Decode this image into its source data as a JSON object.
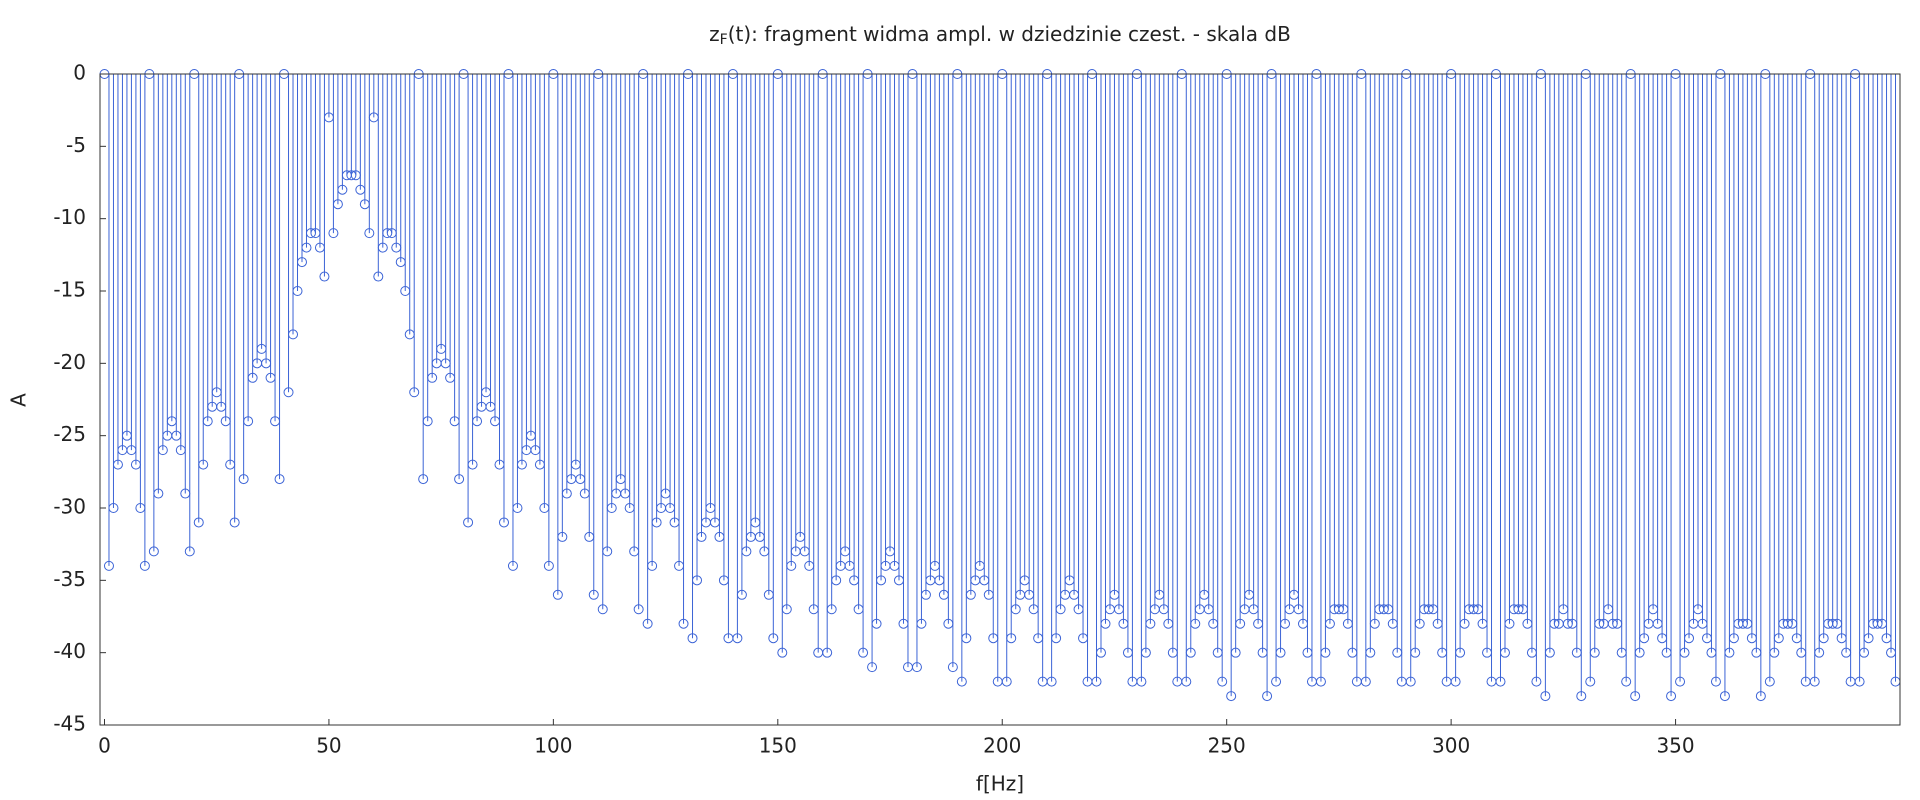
{
  "chart_data": {
    "type": "stem",
    "title_base": "z",
    "title_subscript": "F",
    "title_rest": "(t): fragment widma ampl. w dziedzinie czest. - skala dB",
    "xlabel": "f[Hz]",
    "ylabel": "A",
    "color": "#3b63d6",
    "xlim": [
      -1,
      400
    ],
    "xticks": [
      0,
      50,
      100,
      150,
      200,
      250,
      300,
      350
    ],
    "ylim": [
      -45,
      0
    ],
    "yticks": [
      0,
      -5,
      -10,
      -15,
      -20,
      -25,
      -30,
      -35,
      -40,
      -45
    ],
    "x": [
      0,
      1,
      2,
      3,
      4,
      5,
      6,
      7,
      8,
      9,
      10,
      11,
      12,
      13,
      14,
      15,
      16,
      17,
      18,
      19,
      20,
      21,
      22,
      23,
      24,
      25,
      26,
      27,
      28,
      29,
      30,
      31,
      32,
      33,
      34,
      35,
      36,
      37,
      38,
      39,
      40,
      41,
      42,
      43,
      44,
      45,
      46,
      47,
      48,
      49,
      50,
      51,
      52,
      53,
      54,
      55,
      56,
      57,
      58,
      59,
      60,
      61,
      62,
      63,
      64,
      65,
      66,
      67,
      68,
      69,
      70,
      71,
      72,
      73,
      74,
      75,
      76,
      77,
      78,
      79,
      80,
      81,
      82,
      83,
      84,
      85,
      86,
      87,
      88,
      89,
      90,
      91,
      92,
      93,
      94,
      95,
      96,
      97,
      98,
      99,
      100,
      101,
      102,
      103,
      104,
      105,
      106,
      107,
      108,
      109,
      110,
      111,
      112,
      113,
      114,
      115,
      116,
      117,
      118,
      119,
      120,
      121,
      122,
      123,
      124,
      125,
      126,
      127,
      128,
      129,
      130,
      131,
      132,
      133,
      134,
      135,
      136,
      137,
      138,
      139,
      140,
      141,
      142,
      143,
      144,
      145,
      146,
      147,
      148,
      149,
      150,
      151,
      152,
      153,
      154,
      155,
      156,
      157,
      158,
      159,
      160,
      161,
      162,
      163,
      164,
      165,
      166,
      167,
      168,
      169,
      170,
      171,
      172,
      173,
      174,
      175,
      176,
      177,
      178,
      179,
      180,
      181,
      182,
      183,
      184,
      185,
      186,
      187,
      188,
      189,
      190,
      191,
      192,
      193,
      194,
      195,
      196,
      197,
      198,
      199,
      200,
      201,
      202,
      203,
      204,
      205,
      206,
      207,
      208,
      209,
      210,
      211,
      212,
      213,
      214,
      215,
      216,
      217,
      218,
      219,
      220,
      221,
      222,
      223,
      224,
      225,
      226,
      227,
      228,
      229,
      230,
      231,
      232,
      233,
      234,
      235,
      236,
      237,
      238,
      239,
      240,
      241,
      242,
      243,
      244,
      245,
      246,
      247,
      248,
      249,
      250,
      251,
      252,
      253,
      254,
      255,
      256,
      257,
      258,
      259,
      260,
      261,
      262,
      263,
      264,
      265,
      266,
      267,
      268,
      269,
      270,
      271,
      272,
      273,
      274,
      275,
      276,
      277,
      278,
      279,
      280,
      281,
      282,
      283,
      284,
      285,
      286,
      287,
      288,
      289,
      290,
      291,
      292,
      293,
      294,
      295,
      296,
      297,
      298,
      299,
      300,
      301,
      302,
      303,
      304,
      305,
      306,
      307,
      308,
      309,
      310,
      311,
      312,
      313,
      314,
      315,
      316,
      317,
      318,
      319,
      320,
      321,
      322,
      323,
      324,
      325,
      326,
      327,
      328,
      329,
      330,
      331,
      332,
      333,
      334,
      335,
      336,
      337,
      338,
      339,
      340,
      341,
      342,
      343,
      344,
      345,
      346,
      347,
      348,
      349,
      350,
      351,
      352,
      353,
      354,
      355,
      356,
      357,
      358,
      359,
      360,
      361,
      362,
      363,
      364,
      365,
      366,
      367,
      368,
      369,
      370,
      371,
      372,
      373,
      374,
      375,
      376,
      377,
      378,
      379,
      380,
      381,
      382,
      383,
      384,
      385,
      386,
      387,
      388,
      389,
      390,
      391,
      392,
      393,
      394,
      395,
      396,
      397,
      398,
      399
    ],
    "values": [
      0,
      -34,
      -30,
      -27,
      -26,
      -25,
      -26,
      -27,
      -30,
      -34,
      0,
      -33,
      -29,
      -26,
      -25,
      -24,
      -25,
      -26,
      -29,
      -33,
      0,
      -31,
      -27,
      -24,
      -23,
      -22,
      -23,
      -24,
      -27,
      -31,
      0,
      -28,
      -24,
      -21,
      -20,
      -19,
      -20,
      -21,
      -24,
      -28,
      0,
      -22,
      -18,
      -15,
      -13,
      -12,
      -11,
      -11,
      -12,
      -14,
      -3,
      -11,
      -9,
      -8,
      -7,
      -7,
      -7,
      -8,
      -9,
      -11,
      -3,
      -14,
      -12,
      -11,
      -11,
      -12,
      -13,
      -15,
      -18,
      -22,
      0,
      -28,
      -24,
      -21,
      -20,
      -19,
      -20,
      -21,
      -24,
      -28,
      0,
      -31,
      -27,
      -24,
      -23,
      -22,
      -23,
      -24,
      -27,
      -31,
      0,
      -34,
      -30,
      -27,
      -26,
      -25,
      -26,
      -27,
      -30,
      -34,
      0,
      -36,
      -32,
      -29,
      -28,
      -27,
      -28,
      -29,
      -32,
      -36,
      0,
      -37,
      -33,
      -30,
      -29,
      -28,
      -29,
      -30,
      -33,
      -37,
      0,
      -38,
      -34,
      -31,
      -30,
      -29,
      -30,
      -31,
      -34,
      -38,
      0,
      -39,
      -35,
      -32,
      -31,
      -30,
      -31,
      -32,
      -35,
      -39,
      0,
      -39,
      -36,
      -33,
      -32,
      -31,
      -32,
      -33,
      -36,
      -39,
      0,
      -40,
      -37,
      -34,
      -33,
      -32,
      -33,
      -34,
      -37,
      -40,
      0,
      -40,
      -37,
      -35,
      -34,
      -33,
      -34,
      -35,
      -37,
      -40,
      0,
      -41,
      -38,
      -35,
      -34,
      -33,
      -34,
      -35,
      -38,
      -41,
      0,
      -41,
      -38,
      -36,
      -35,
      -34,
      -35,
      -36,
      -38,
      -41,
      0,
      -42,
      -39,
      -36,
      -35,
      -34,
      -35,
      -36,
      -39,
      -42,
      0,
      -42,
      -39,
      -37,
      -36,
      -35,
      -36,
      -37,
      -39,
      -42,
      0,
      -42,
      -39,
      -37,
      -36,
      -35,
      -36,
      -37,
      -39,
      -42,
      0,
      -42,
      -40,
      -38,
      -37,
      -36,
      -37,
      -38,
      -40,
      -42,
      0,
      -42,
      -40,
      -38,
      -37,
      -36,
      -37,
      -38,
      -40,
      -42,
      0,
      -42,
      -40,
      -38,
      -37,
      -36,
      -37,
      -38,
      -40,
      -42,
      0,
      -43,
      -40,
      -38,
      -37,
      -36,
      -37,
      -38,
      -40,
      -43,
      0,
      -42,
      -40,
      -38,
      -37,
      -36,
      -37,
      -38,
      -40,
      -42,
      0,
      -42,
      -40,
      -38,
      -37,
      -37,
      -37,
      -38,
      -40,
      -42,
      0,
      -42,
      -40,
      -38,
      -37,
      -37,
      -37,
      -38,
      -40,
      -42,
      0,
      -42,
      -40,
      -38,
      -37,
      -37,
      -37,
      -38,
      -40,
      -42,
      0,
      -42,
      -40,
      -38,
      -37,
      -37,
      -37,
      -38,
      -40,
      -42,
      0,
      -42,
      -40,
      -38,
      -37,
      -37,
      -37,
      -38,
      -40,
      -42,
      0,
      -43,
      -40,
      -38,
      -38,
      -37,
      -38,
      -38,
      -40,
      -43,
      0,
      -42,
      -40,
      -38,
      -38,
      -37,
      -38,
      -38,
      -40,
      -42,
      0,
      -43,
      -40,
      -39,
      -38,
      -37,
      -38,
      -39,
      -40,
      -43,
      0,
      -42,
      -40,
      -39,
      -38,
      -37,
      -38,
      -39,
      -40,
      -42,
      0,
      -43,
      -40,
      -39,
      -38,
      -38,
      -38,
      -39,
      -40,
      -43,
      0,
      -42,
      -40,
      -39,
      -38,
      -38,
      -38,
      -39,
      -40,
      -42,
      0,
      -42,
      -40,
      -39,
      -38,
      -38,
      -38,
      -39,
      -40,
      -42,
      0,
      -42,
      -40,
      -39,
      -38,
      -38,
      -38,
      -39,
      -40,
      -42
    ]
  }
}
